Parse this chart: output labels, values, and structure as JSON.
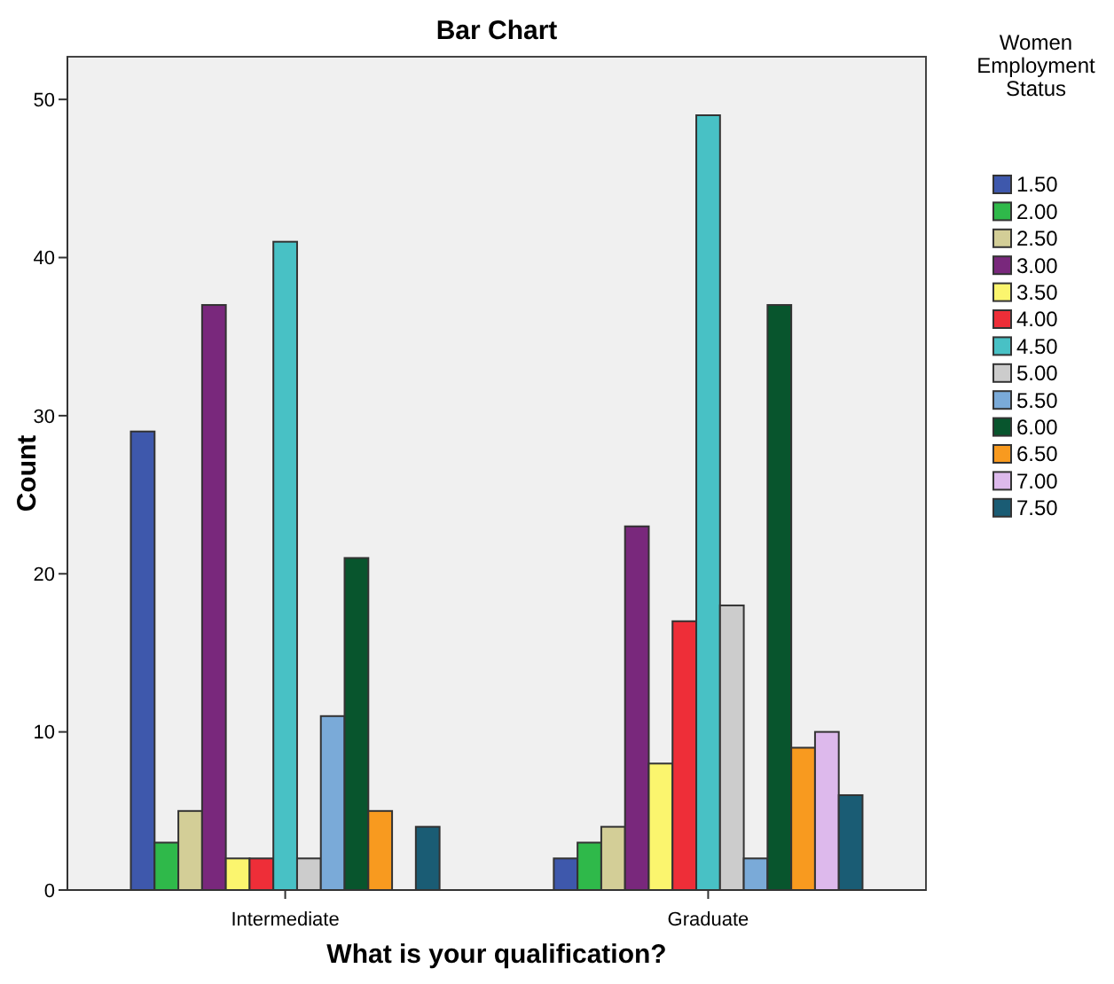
{
  "chart_data": {
    "type": "bar",
    "title": "Bar Chart",
    "xlabel": "What is your qualification?",
    "ylabel": "Count",
    "legend_title": "Women Employment Status",
    "categories": [
      "Intermediate",
      "Graduate"
    ],
    "ylim": [
      0,
      52.7
    ],
    "yticks": [
      0,
      10,
      20,
      30,
      40,
      50
    ],
    "grid": false,
    "legend": "right",
    "series": [
      {
        "name": "1.50",
        "color": "#3e58ac",
        "values": [
          29,
          2
        ]
      },
      {
        "name": "2.00",
        "color": "#2fb94a",
        "values": [
          3,
          3
        ]
      },
      {
        "name": "2.50",
        "color": "#d3ce97",
        "values": [
          5,
          4
        ]
      },
      {
        "name": "3.00",
        "color": "#79287c",
        "values": [
          37,
          23
        ]
      },
      {
        "name": "3.50",
        "color": "#fbf56e",
        "values": [
          2,
          8
        ]
      },
      {
        "name": "4.00",
        "color": "#ee2e38",
        "values": [
          2,
          17
        ]
      },
      {
        "name": "4.50",
        "color": "#48c1c5",
        "values": [
          41,
          49
        ]
      },
      {
        "name": "5.00",
        "color": "#cccccc",
        "values": [
          2,
          18
        ]
      },
      {
        "name": "5.50",
        "color": "#7aaad8",
        "values": [
          11,
          2
        ]
      },
      {
        "name": "6.00",
        "color": "#08552d",
        "values": [
          21,
          37
        ]
      },
      {
        "name": "6.50",
        "color": "#f89a1f",
        "values": [
          5,
          9
        ]
      },
      {
        "name": "7.00",
        "color": "#ddb9ec",
        "values": [
          null,
          10
        ]
      },
      {
        "name": "7.50",
        "color": "#1a5c74",
        "values": [
          4,
          6
        ]
      }
    ]
  }
}
